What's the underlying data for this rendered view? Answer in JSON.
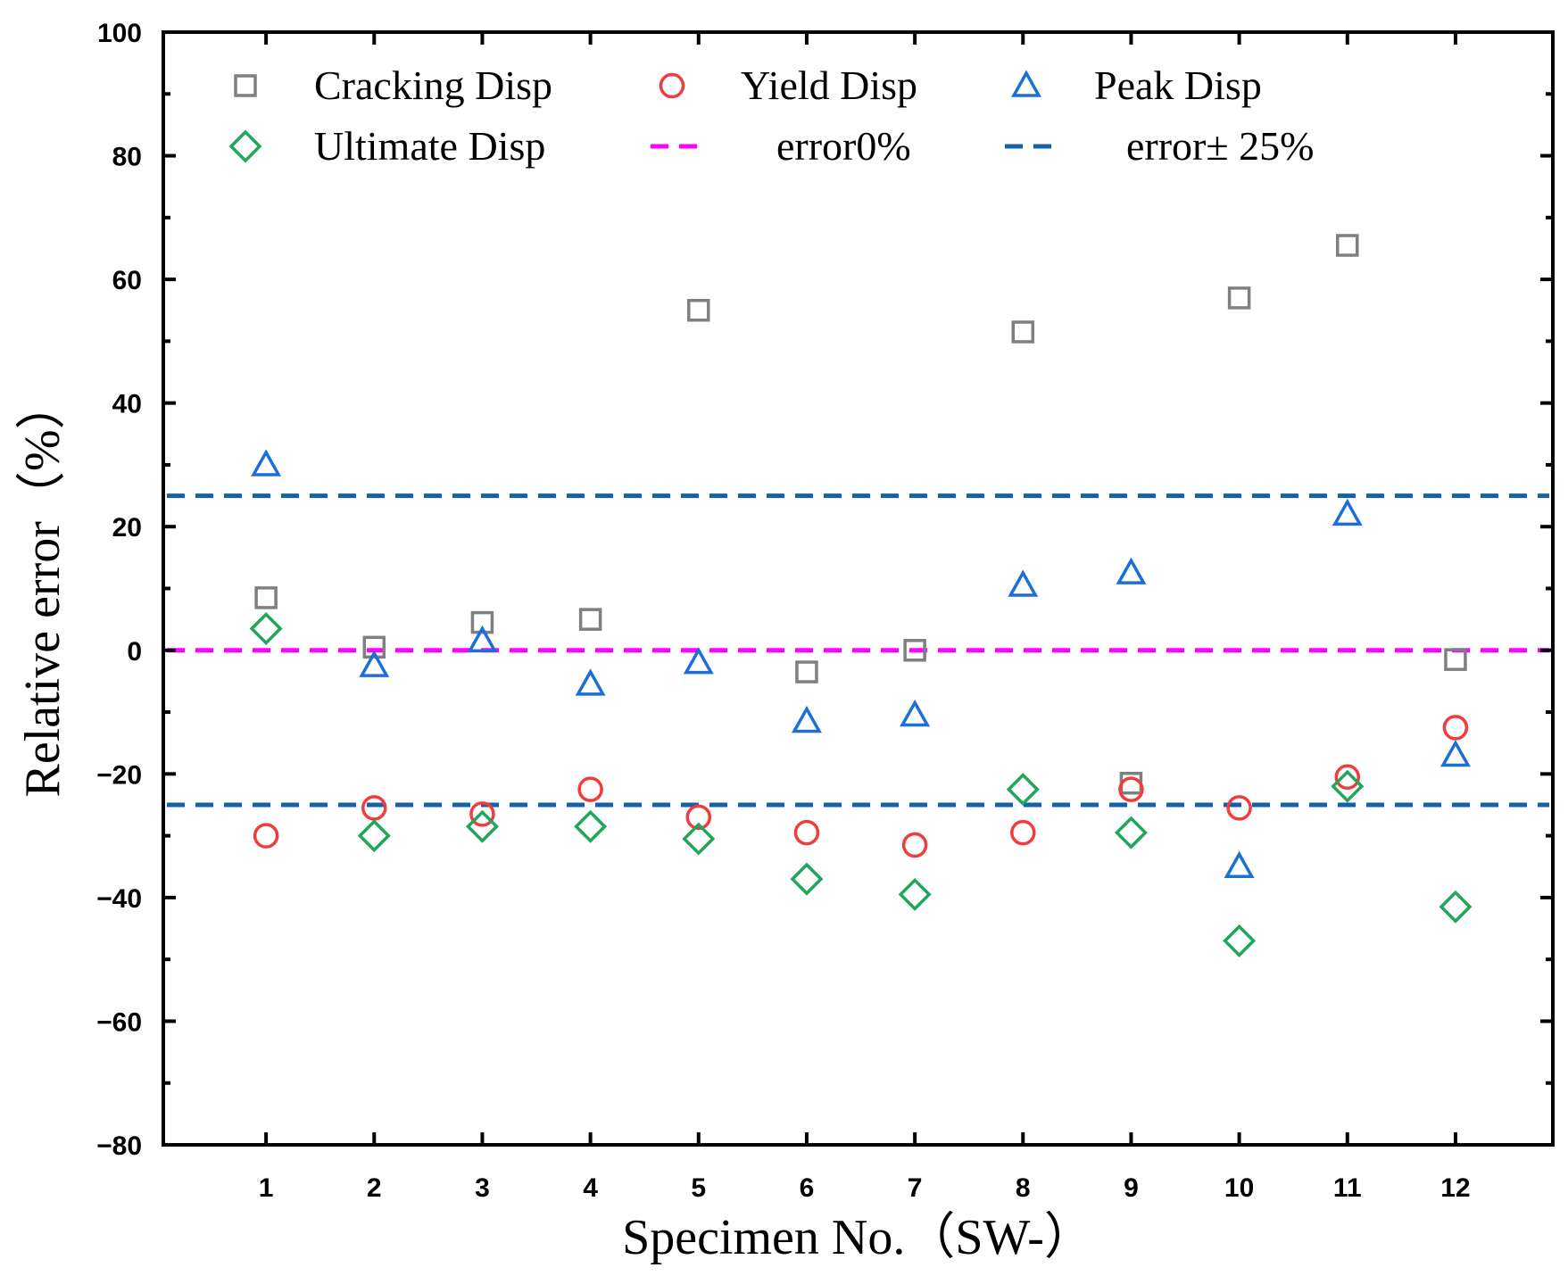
{
  "chart_data": {
    "type": "scatter",
    "title": "",
    "xlabel": "Specimen No.（SW-）",
    "ylabel": "Relative error（%）",
    "xlim": [
      0.05,
      12.9
    ],
    "ylim": [
      -80,
      100
    ],
    "x": [
      1,
      2,
      3,
      4,
      5,
      6,
      7,
      8,
      9,
      10,
      11,
      12
    ],
    "xticks": [
      "1",
      "2",
      "3",
      "4",
      "5",
      "6",
      "7",
      "8",
      "9",
      "10",
      "11",
      "12"
    ],
    "yticks": [
      "100",
      "80",
      "60",
      "40",
      "20",
      "0",
      "−20",
      "−40",
      "−60",
      "−80"
    ],
    "ytick_values": [
      100,
      80,
      60,
      40,
      20,
      0,
      -20,
      -40,
      -60,
      -80
    ],
    "series": [
      {
        "name": "Cracking Disp",
        "marker": "square",
        "color": "#7f7f7f",
        "values": [
          8.5,
          0.5,
          4.5,
          5,
          55,
          -3.5,
          0,
          51.5,
          -21.5,
          57,
          65.5,
          -1.5
        ]
      },
      {
        "name": "Yield Disp",
        "marker": "circle",
        "color": "#f03c3c",
        "values": [
          -30,
          -25.5,
          -26.5,
          -22.5,
          -27,
          -29.5,
          -31.5,
          -29.5,
          -22.5,
          -25.5,
          -20.5,
          -12.5
        ]
      },
      {
        "name": "Peak Disp",
        "marker": "triangle",
        "color": "#1c6fd6",
        "values": [
          30,
          -2.5,
          1.5,
          -5.5,
          -2,
          -11.5,
          -10.5,
          10.5,
          12.5,
          -35,
          22,
          -17
        ]
      },
      {
        "name": "Ultimate Disp",
        "marker": "diamond",
        "color": "#1ea65a",
        "values": [
          3.5,
          -30,
          -28.5,
          -28.5,
          -30.5,
          -37,
          -39.5,
          -22.5,
          -29.5,
          -47,
          -22,
          -41.5
        ]
      }
    ],
    "reference_lines": [
      {
        "name": "error0%",
        "values": [
          0
        ],
        "color": "#ff00ff",
        "style": "dashed"
      },
      {
        "name": "error± 25%",
        "values": [
          25,
          -25
        ],
        "color": "#1560a8",
        "style": "dashed"
      }
    ],
    "legend": {
      "placement": "top-left"
    },
    "grid": false
  }
}
